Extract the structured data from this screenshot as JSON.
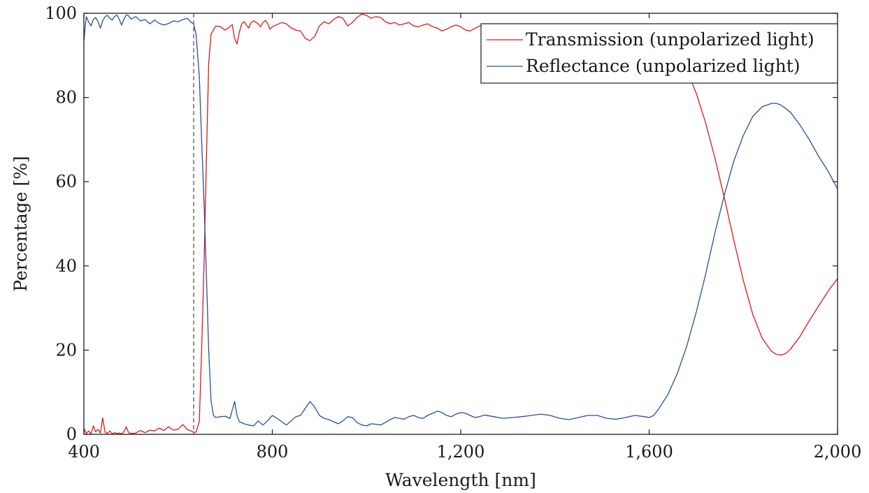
{
  "chart_data": {
    "type": "line",
    "xlabel": "Wavelength [nm]",
    "ylabel": "Percentage [%]",
    "xlim": [
      400,
      2000
    ],
    "ylim": [
      0,
      100
    ],
    "x_ticks": [
      400,
      800,
      1200,
      1600,
      2000
    ],
    "x_tick_labels": [
      "400",
      "800",
      "1,200",
      "1,600",
      "2,000"
    ],
    "y_ticks": [
      0,
      20,
      40,
      60,
      80,
      100
    ],
    "y_tick_labels": [
      "0",
      "20",
      "40",
      "60",
      "80",
      "100"
    ],
    "grid": false,
    "legend_position": "top-right",
    "reference_line": {
      "x": 633,
      "style": "dashed"
    },
    "series": [
      {
        "name": "Transmission (unpolarized light)",
        "color": "#d7191c",
        "points": [
          [
            400,
            1.5
          ],
          [
            405,
            0.2
          ],
          [
            410,
            0.8
          ],
          [
            415,
            0.1
          ],
          [
            420,
            2.0
          ],
          [
            425,
            0.6
          ],
          [
            430,
            1.2
          ],
          [
            435,
            0.3
          ],
          [
            440,
            3.9
          ],
          [
            445,
            0.5
          ],
          [
            450,
            0.2
          ],
          [
            455,
            0.8
          ],
          [
            460,
            0.1
          ],
          [
            465,
            0.4
          ],
          [
            470,
            0.2
          ],
          [
            475,
            0.3
          ],
          [
            480,
            0.1
          ],
          [
            485,
            0.6
          ],
          [
            490,
            1.8
          ],
          [
            495,
            0.4
          ],
          [
            500,
            0.2
          ],
          [
            510,
            0.3
          ],
          [
            520,
            0.9
          ],
          [
            530,
            0.4
          ],
          [
            540,
            1.0
          ],
          [
            550,
            0.8
          ],
          [
            560,
            1.5
          ],
          [
            570,
            0.9
          ],
          [
            580,
            1.8
          ],
          [
            590,
            1.0
          ],
          [
            600,
            1.2
          ],
          [
            610,
            2.3
          ],
          [
            620,
            1.1
          ],
          [
            628,
            0.8
          ],
          [
            633,
            0.5
          ],
          [
            638,
            0.5
          ],
          [
            645,
            3
          ],
          [
            650,
            20
          ],
          [
            655,
            40
          ],
          [
            660,
            65
          ],
          [
            665,
            88
          ],
          [
            670,
            95
          ],
          [
            680,
            97
          ],
          [
            690,
            96.8
          ],
          [
            700,
            96
          ],
          [
            710,
            96.8
          ],
          [
            715,
            97.3
          ],
          [
            720,
            94
          ],
          [
            725,
            92.7
          ],
          [
            730,
            95.5
          ],
          [
            735,
            97.5
          ],
          [
            740,
            98
          ],
          [
            745,
            97.2
          ],
          [
            750,
            96.5
          ],
          [
            755,
            97.8
          ],
          [
            760,
            98.2
          ],
          [
            770,
            97.5
          ],
          [
            775,
            96.8
          ],
          [
            780,
            97.8
          ],
          [
            785,
            98.3
          ],
          [
            790,
            97.6
          ],
          [
            795,
            96.2
          ],
          [
            800,
            96.8
          ],
          [
            810,
            97.3
          ],
          [
            820,
            97.8
          ],
          [
            830,
            97.5
          ],
          [
            840,
            96.5
          ],
          [
            850,
            96
          ],
          [
            860,
            95.8
          ],
          [
            870,
            94
          ],
          [
            880,
            93.5
          ],
          [
            890,
            94.5
          ],
          [
            900,
            97
          ],
          [
            910,
            98
          ],
          [
            920,
            97.5
          ],
          [
            930,
            98.5
          ],
          [
            940,
            99.2
          ],
          [
            950,
            98.8
          ],
          [
            960,
            97
          ],
          [
            970,
            97.8
          ],
          [
            980,
            99
          ],
          [
            990,
            99.8
          ],
          [
            1000,
            99.5
          ],
          [
            1010,
            98.8
          ],
          [
            1020,
            99.2
          ],
          [
            1030,
            99
          ],
          [
            1040,
            98
          ],
          [
            1050,
            97.5
          ],
          [
            1060,
            97.8
          ],
          [
            1070,
            97.2
          ],
          [
            1080,
            97.5
          ],
          [
            1090,
            97.8
          ],
          [
            1100,
            97
          ],
          [
            1110,
            96.8
          ],
          [
            1120,
            97.2
          ],
          [
            1130,
            97.5
          ],
          [
            1140,
            96.8
          ],
          [
            1150,
            96.5
          ],
          [
            1160,
            95.8
          ],
          [
            1170,
            96.2
          ],
          [
            1180,
            96.8
          ],
          [
            1190,
            97.2
          ],
          [
            1200,
            96.8
          ],
          [
            1210,
            96
          ],
          [
            1220,
            95.8
          ],
          [
            1230,
            96.4
          ],
          [
            1240,
            97
          ],
          [
            1250,
            97.2
          ],
          [
            1260,
            97
          ],
          [
            1270,
            96.2
          ],
          [
            1280,
            96.5
          ],
          [
            1300,
            97
          ],
          [
            1320,
            96.6
          ],
          [
            1340,
            97.2
          ],
          [
            1360,
            96.9
          ],
          [
            1380,
            97.1
          ],
          [
            1400,
            96.8
          ],
          [
            1420,
            97
          ],
          [
            1440,
            96.7
          ],
          [
            1460,
            97
          ],
          [
            1480,
            96.8
          ],
          [
            1500,
            97
          ],
          [
            1520,
            96.7
          ],
          [
            1540,
            97
          ],
          [
            1560,
            96.5
          ],
          [
            1580,
            96.8
          ],
          [
            1600,
            96.5
          ],
          [
            1620,
            95.5
          ],
          [
            1640,
            93.5
          ],
          [
            1660,
            90.5
          ],
          [
            1680,
            86.5
          ],
          [
            1700,
            81
          ],
          [
            1720,
            74
          ],
          [
            1740,
            65.5
          ],
          [
            1760,
            56
          ],
          [
            1780,
            46
          ],
          [
            1800,
            36.5
          ],
          [
            1820,
            28.5
          ],
          [
            1840,
            22.8
          ],
          [
            1860,
            19.7
          ],
          [
            1870,
            19.0
          ],
          [
            1880,
            18.8
          ],
          [
            1890,
            19.2
          ],
          [
            1900,
            20.2
          ],
          [
            1920,
            23.2
          ],
          [
            1940,
            27
          ],
          [
            1960,
            30.5
          ],
          [
            1980,
            34
          ],
          [
            2000,
            37
          ]
        ]
      },
      {
        "name": "Reflectance (unpolarized light)",
        "color": "#2b4e9b",
        "points": [
          [
            400,
            93.5
          ],
          [
            405,
            99.2
          ],
          [
            410,
            98
          ],
          [
            415,
            97
          ],
          [
            420,
            98.5
          ],
          [
            425,
            99
          ],
          [
            430,
            98
          ],
          [
            435,
            96.5
          ],
          [
            440,
            98.2
          ],
          [
            445,
            99.2
          ],
          [
            450,
            99.5
          ],
          [
            455,
            98.8
          ],
          [
            460,
            98.4
          ],
          [
            465,
            99.2
          ],
          [
            470,
            99.6
          ],
          [
            475,
            98.6
          ],
          [
            480,
            97.2
          ],
          [
            485,
            98.6
          ],
          [
            490,
            99.6
          ],
          [
            495,
            99.4
          ],
          [
            500,
            98.6
          ],
          [
            510,
            99.2
          ],
          [
            520,
            98.2
          ],
          [
            530,
            98.5
          ],
          [
            540,
            97.5
          ],
          [
            550,
            98.4
          ],
          [
            560,
            97.6
          ],
          [
            570,
            97.2
          ],
          [
            580,
            97.6
          ],
          [
            590,
            98.2
          ],
          [
            600,
            98.0
          ],
          [
            610,
            98.5
          ],
          [
            620,
            98.8
          ],
          [
            628,
            97.8
          ],
          [
            633,
            97.5
          ],
          [
            638,
            95
          ],
          [
            645,
            85
          ],
          [
            650,
            70
          ],
          [
            655,
            55
          ],
          [
            660,
            38
          ],
          [
            665,
            20
          ],
          [
            670,
            8
          ],
          [
            675,
            4.5
          ],
          [
            680,
            4.0
          ],
          [
            690,
            4.2
          ],
          [
            700,
            4.3
          ],
          [
            710,
            3.8
          ],
          [
            720,
            7.8
          ],
          [
            725,
            4.5
          ],
          [
            730,
            3.0
          ],
          [
            740,
            2.5
          ],
          [
            750,
            2.2
          ],
          [
            760,
            2.0
          ],
          [
            770,
            3.2
          ],
          [
            780,
            2.2
          ],
          [
            790,
            3.2
          ],
          [
            800,
            4.5
          ],
          [
            810,
            3.8
          ],
          [
            820,
            3.0
          ],
          [
            830,
            2.2
          ],
          [
            840,
            3.2
          ],
          [
            850,
            4.2
          ],
          [
            860,
            4.5
          ],
          [
            870,
            6.2
          ],
          [
            880,
            7.8
          ],
          [
            890,
            6.5
          ],
          [
            900,
            4.5
          ],
          [
            910,
            3.8
          ],
          [
            920,
            3.5
          ],
          [
            930,
            3.0
          ],
          [
            940,
            2.5
          ],
          [
            950,
            3.2
          ],
          [
            960,
            4.2
          ],
          [
            970,
            4.0
          ],
          [
            980,
            2.8
          ],
          [
            990,
            2.2
          ],
          [
            1000,
            2.0
          ],
          [
            1010,
            2.5
          ],
          [
            1020,
            2.4
          ],
          [
            1030,
            2.2
          ],
          [
            1040,
            2.8
          ],
          [
            1050,
            3.5
          ],
          [
            1060,
            4.0
          ],
          [
            1070,
            3.8
          ],
          [
            1080,
            3.6
          ],
          [
            1090,
            4.2
          ],
          [
            1100,
            4.5
          ],
          [
            1110,
            4.0
          ],
          [
            1120,
            3.8
          ],
          [
            1130,
            4.5
          ],
          [
            1140,
            5.0
          ],
          [
            1150,
            5.5
          ],
          [
            1160,
            5.2
          ],
          [
            1170,
            4.5
          ],
          [
            1180,
            4.2
          ],
          [
            1190,
            4.8
          ],
          [
            1200,
            5.2
          ],
          [
            1210,
            5.0
          ],
          [
            1220,
            4.5
          ],
          [
            1230,
            4.0
          ],
          [
            1240,
            4.2
          ],
          [
            1250,
            4.6
          ],
          [
            1270,
            4.2
          ],
          [
            1290,
            3.8
          ],
          [
            1310,
            4.0
          ],
          [
            1330,
            4.2
          ],
          [
            1350,
            4.5
          ],
          [
            1370,
            4.8
          ],
          [
            1390,
            4.5
          ],
          [
            1410,
            3.8
          ],
          [
            1430,
            3.5
          ],
          [
            1450,
            4.0
          ],
          [
            1470,
            4.5
          ],
          [
            1490,
            4.5
          ],
          [
            1510,
            3.8
          ],
          [
            1530,
            3.6
          ],
          [
            1550,
            4.0
          ],
          [
            1570,
            4.5
          ],
          [
            1590,
            4.2
          ],
          [
            1600,
            4.0
          ],
          [
            1610,
            4.5
          ],
          [
            1620,
            6
          ],
          [
            1640,
            9.5
          ],
          [
            1660,
            14.5
          ],
          [
            1680,
            21
          ],
          [
            1700,
            29
          ],
          [
            1720,
            38
          ],
          [
            1740,
            48
          ],
          [
            1760,
            57
          ],
          [
            1780,
            65
          ],
          [
            1800,
            71
          ],
          [
            1820,
            75.5
          ],
          [
            1840,
            77.8
          ],
          [
            1860,
            78.6
          ],
          [
            1870,
            78.6
          ],
          [
            1880,
            78.2
          ],
          [
            1900,
            76.5
          ],
          [
            1920,
            73.5
          ],
          [
            1940,
            70
          ],
          [
            1960,
            66
          ],
          [
            1980,
            62.5
          ],
          [
            2000,
            58.3
          ]
        ]
      }
    ]
  }
}
